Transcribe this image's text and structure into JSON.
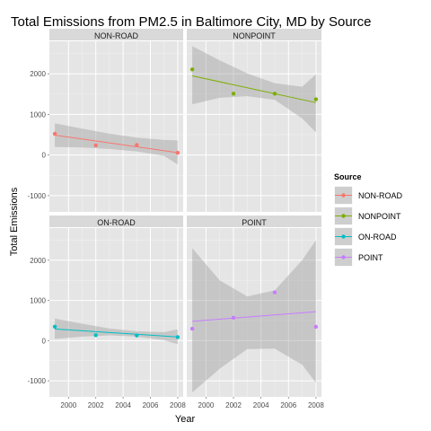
{
  "chart_data": {
    "type": "scatter",
    "title": "Total Emissions from PM2.5 in Baltimore City, MD by Source",
    "xlabel": "Year",
    "ylabel": "Total Emissions",
    "xlim": [
      1998.6,
      2008.4
    ],
    "ylim": [
      -1400,
      2800
    ],
    "x_ticks": [
      2000,
      2002,
      2004,
      2006,
      2008
    ],
    "y_ticks": [
      -1000,
      0,
      1000,
      2000
    ],
    "legend": {
      "title": "Source",
      "position": "right"
    },
    "smoother": "linear fit with confidence band",
    "grid": true,
    "panels": [
      {
        "name": "NON-ROAD",
        "color": "#F8766D",
        "x": [
          1999,
          2002,
          2005,
          2008
        ],
        "values": [
          523,
          241,
          249,
          56
        ],
        "fit": {
          "x": [
            1999,
            2008
          ],
          "y": [
            490,
            60
          ]
        },
        "band": {
          "x": [
            1999,
            2001,
            2003,
            2005,
            2007,
            2008
          ],
          "lower": [
            200,
            185,
            150,
            90,
            -20,
            -230
          ],
          "upper": [
            780,
            650,
            525,
            430,
            370,
            360
          ]
        }
      },
      {
        "name": "NONPOINT",
        "color": "#7CAE00",
        "x": [
          1999,
          2002,
          2005,
          2008
        ],
        "values": [
          2108,
          1510,
          1510,
          1373
        ],
        "fit": {
          "x": [
            1999,
            2008
          ],
          "y": [
            1950,
            1290
          ]
        },
        "band": {
          "x": [
            1999,
            2001,
            2003,
            2005,
            2007,
            2008
          ],
          "lower": [
            1250,
            1410,
            1450,
            1360,
            900,
            560
          ],
          "upper": [
            2680,
            2330,
            2010,
            1770,
            1680,
            1990
          ]
        }
      },
      {
        "name": "ON-ROAD",
        "color": "#00BFC4",
        "x": [
          1999,
          2002,
          2005,
          2008
        ],
        "values": [
          347,
          134,
          130,
          88
        ],
        "fit": {
          "x": [
            1999,
            2008
          ],
          "y": [
            290,
            90
          ]
        },
        "band": {
          "x": [
            1999,
            2001,
            2003,
            2005,
            2007,
            2008
          ],
          "lower": [
            40,
            100,
            130,
            100,
            10,
            -90
          ],
          "upper": [
            550,
            420,
            300,
            230,
            210,
            280
          ]
        }
      },
      {
        "name": "POINT",
        "color": "#C77CFF",
        "x": [
          1999,
          2002,
          2005,
          2008
        ],
        "values": [
          297,
          570,
          1200,
          345
        ],
        "fit": {
          "x": [
            1999,
            2008
          ],
          "y": [
            480,
            720
          ]
        },
        "band": {
          "x": [
            1999,
            2001,
            2003,
            2005,
            2007,
            2008
          ],
          "lower": [
            -1290,
            -700,
            -210,
            -200,
            -600,
            -1050
          ],
          "upper": [
            2300,
            1500,
            1100,
            1250,
            2000,
            2500
          ]
        }
      }
    ]
  }
}
